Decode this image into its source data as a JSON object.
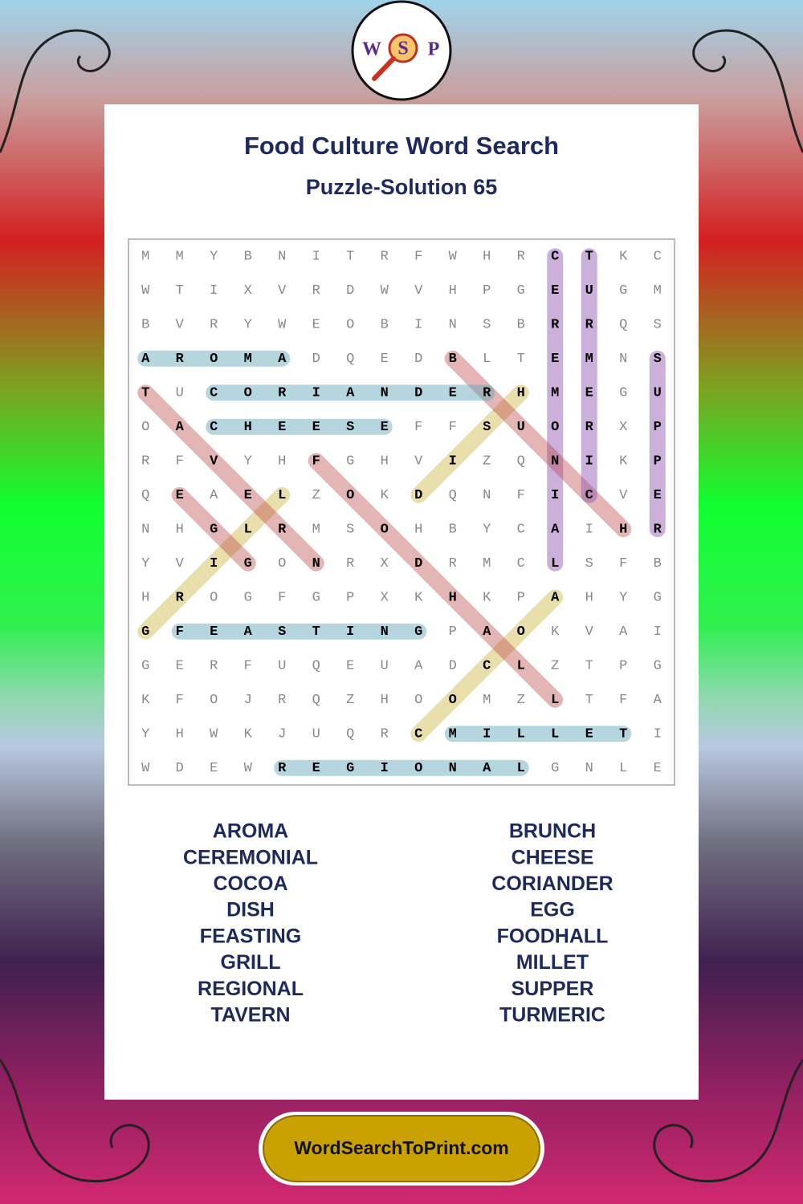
{
  "logo": {
    "letters": [
      "W",
      "S",
      "P"
    ]
  },
  "header": {
    "title": "Food Culture Word Search",
    "subtitle": "Puzzle-Solution 65"
  },
  "grid": {
    "rows": [
      [
        "M",
        "M",
        "Y",
        "B",
        "N",
        "I",
        "T",
        "R",
        "F",
        "W",
        "H",
        "R",
        "C",
        "T",
        "K",
        "C"
      ],
      [
        "W",
        "T",
        "I",
        "X",
        "V",
        "R",
        "D",
        "W",
        "V",
        "H",
        "P",
        "G",
        "E",
        "U",
        "G",
        "M"
      ],
      [
        "B",
        "V",
        "R",
        "Y",
        "W",
        "E",
        "O",
        "B",
        "I",
        "N",
        "S",
        "B",
        "R",
        "R",
        "Q",
        "S"
      ],
      [
        "A",
        "R",
        "O",
        "M",
        "A",
        "D",
        "Q",
        "E",
        "D",
        "B",
        "L",
        "T",
        "E",
        "M",
        "N",
        "S"
      ],
      [
        "T",
        "U",
        "C",
        "O",
        "R",
        "I",
        "A",
        "N",
        "D",
        "E",
        "R",
        "H",
        "M",
        "E",
        "G",
        "U"
      ],
      [
        "O",
        "A",
        "C",
        "H",
        "E",
        "E",
        "S",
        "E",
        "F",
        "F",
        "S",
        "U",
        "O",
        "R",
        "X",
        "P"
      ],
      [
        "R",
        "F",
        "V",
        "Y",
        "H",
        "F",
        "G",
        "H",
        "V",
        "I",
        "Z",
        "Q",
        "N",
        "I",
        "K",
        "P"
      ],
      [
        "Q",
        "E",
        "A",
        "E",
        "L",
        "Z",
        "O",
        "K",
        "D",
        "Q",
        "N",
        "F",
        "I",
        "C",
        "V",
        "E"
      ],
      [
        "N",
        "H",
        "G",
        "L",
        "R",
        "M",
        "S",
        "O",
        "H",
        "B",
        "Y",
        "C",
        "A",
        "I",
        "H",
        "R"
      ],
      [
        "Y",
        "V",
        "I",
        "G",
        "O",
        "N",
        "R",
        "X",
        "D",
        "R",
        "M",
        "C",
        "L",
        "S",
        "F",
        "B"
      ],
      [
        "H",
        "R",
        "O",
        "G",
        "F",
        "G",
        "P",
        "X",
        "K",
        "H",
        "K",
        "P",
        "A",
        "H",
        "Y",
        "G"
      ],
      [
        "G",
        "F",
        "E",
        "A",
        "S",
        "T",
        "I",
        "N",
        "G",
        "P",
        "A",
        "O",
        "K",
        "V",
        "A",
        "I"
      ],
      [
        "G",
        "E",
        "R",
        "F",
        "U",
        "Q",
        "E",
        "U",
        "A",
        "D",
        "C",
        "L",
        "Z",
        "T",
        "P",
        "G"
      ],
      [
        "K",
        "F",
        "O",
        "J",
        "R",
        "Q",
        "Z",
        "H",
        "O",
        "O",
        "M",
        "Z",
        "L",
        "T",
        "F",
        "A"
      ],
      [
        "Y",
        "H",
        "W",
        "K",
        "J",
        "U",
        "Q",
        "R",
        "C",
        "M",
        "I",
        "L",
        "L",
        "E",
        "T",
        "I"
      ],
      [
        "W",
        "D",
        "E",
        "W",
        "R",
        "E",
        "G",
        "I",
        "O",
        "N",
        "A",
        "L",
        "G",
        "N",
        "L",
        "E"
      ]
    ]
  },
  "words": {
    "left": [
      "AROMA",
      "CEREMONIAL",
      "COCOA",
      "DISH",
      "FEASTING",
      "GRILL",
      "REGIONAL",
      "TAVERN"
    ],
    "right": [
      "BRUNCH",
      "CHEESE",
      "CORIANDER",
      "EGG",
      "FOODHALL",
      "MILLET",
      "SUPPER",
      "TURMERIC"
    ]
  },
  "footer": {
    "site": "WordSearchToPrint.com"
  }
}
